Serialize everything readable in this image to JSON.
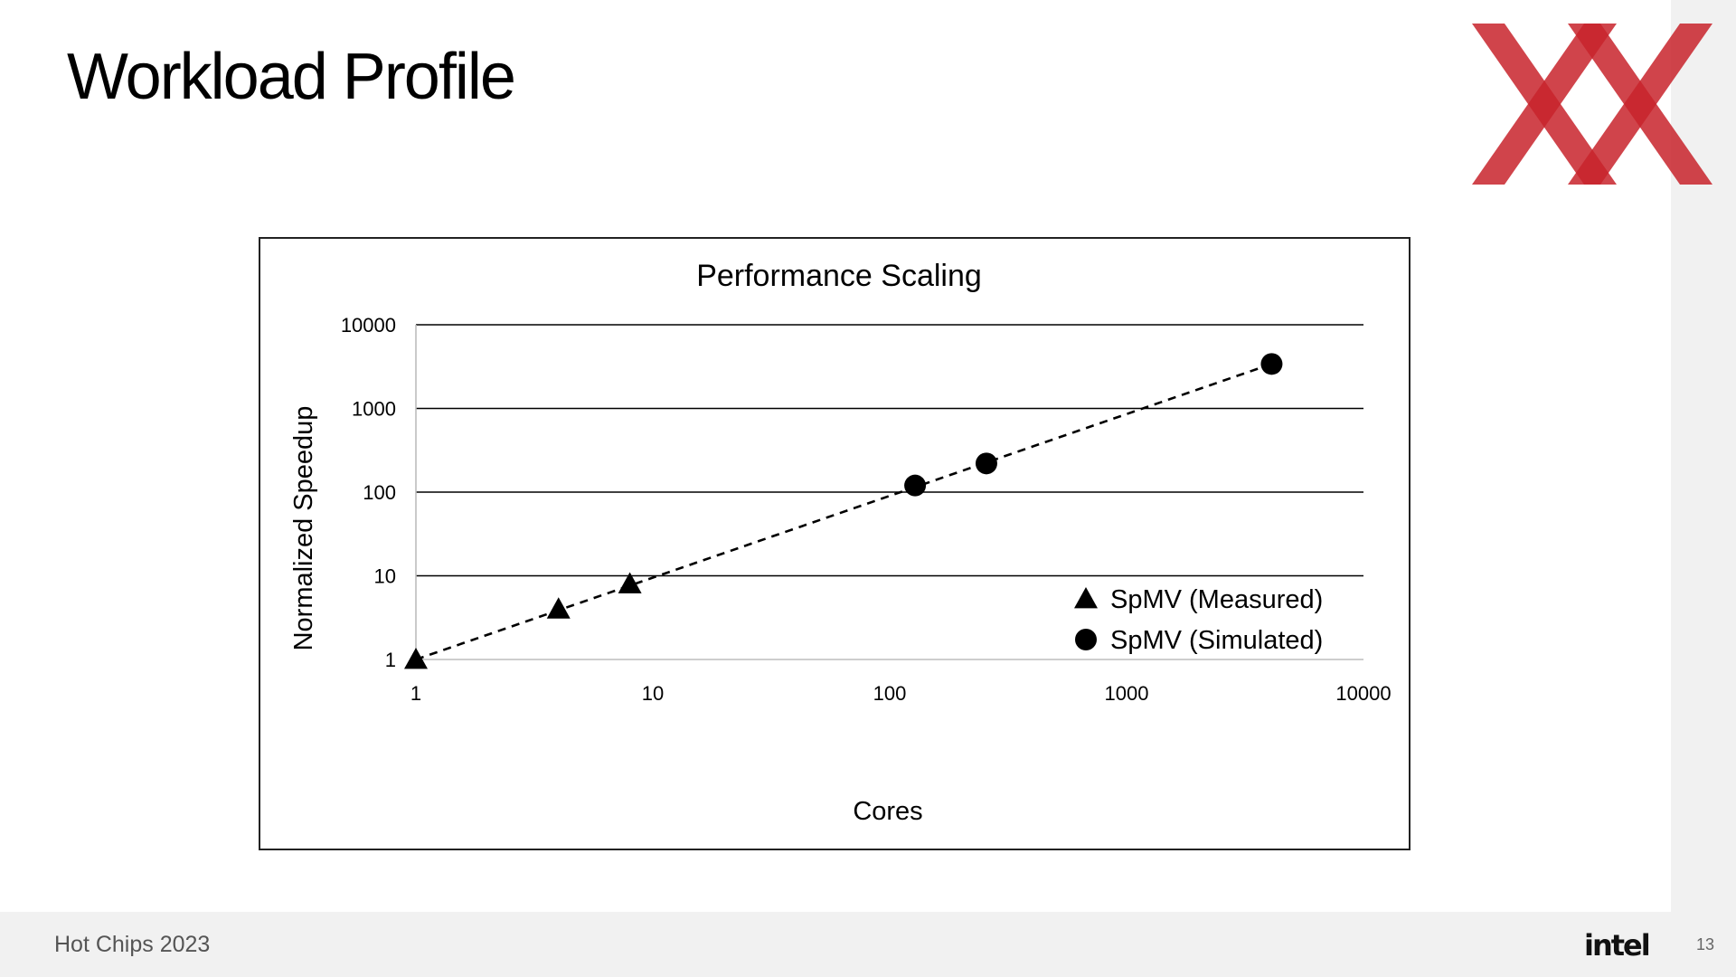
{
  "slide": {
    "title": "Workload Profile",
    "footer": "Hot Chips 2023",
    "logo": "intel",
    "page_number": "13"
  },
  "brand": {
    "accent": "#c8232c",
    "mark_icon": "double-x-logo-icon"
  },
  "chart_data": {
    "type": "scatter",
    "title": "Performance Scaling",
    "xlabel": "Cores",
    "ylabel": "Normalized Speedup",
    "xscale": "log",
    "yscale": "log",
    "xlim": [
      1,
      10000
    ],
    "ylim": [
      1,
      10000
    ],
    "xticks": [
      1,
      10,
      100,
      1000,
      10000
    ],
    "yticks": [
      1,
      10,
      100,
      1000,
      10000
    ],
    "xtick_labels": [
      "1",
      "10",
      "100",
      "1000",
      "10000"
    ],
    "ytick_labels": [
      "1",
      "10",
      "100",
      "1000",
      "10000"
    ],
    "grid": "horizontal",
    "legend_position": "bottom-right",
    "series": [
      {
        "name": "SpMV (Measured)",
        "marker": "triangle",
        "color": "#000000",
        "points": [
          {
            "x": 1,
            "y": 1
          },
          {
            "x": 4,
            "y": 4
          },
          {
            "x": 8,
            "y": 8
          }
        ]
      },
      {
        "name": "SpMV (Simulated)",
        "marker": "circle",
        "color": "#000000",
        "points": [
          {
            "x": 128,
            "y": 120
          },
          {
            "x": 256,
            "y": 220
          },
          {
            "x": 4096,
            "y": 3400
          }
        ]
      }
    ],
    "trendline": {
      "style": "dashed",
      "from": {
        "x": 1,
        "y": 1
      },
      "to": {
        "x": 4096,
        "y": 3400
      }
    }
  }
}
